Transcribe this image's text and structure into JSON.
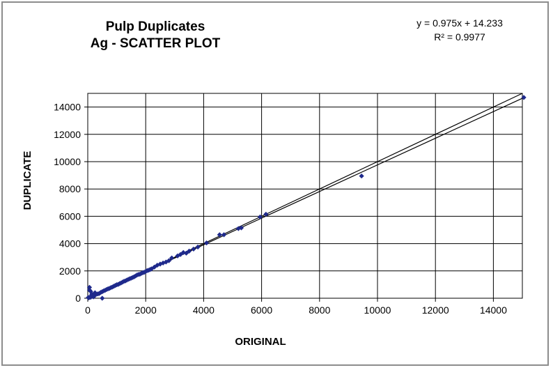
{
  "chart_data": {
    "type": "scatter",
    "title_lines": [
      "Pulp Duplicates",
      "Ag -  SCATTER PLOT"
    ],
    "xlabel": "ORIGINAL",
    "ylabel": "DUPLICATE",
    "xlim": [
      0,
      15000
    ],
    "ylim": [
      0,
      15000
    ],
    "xticks": [
      0,
      2000,
      4000,
      6000,
      8000,
      10000,
      12000,
      14000
    ],
    "yticks": [
      0,
      2000,
      4000,
      6000,
      8000,
      10000,
      12000,
      14000
    ],
    "grid": true,
    "marker_color": "#1f2a8c",
    "line_color": "#000000",
    "trendline": {
      "equation": "y = 0.975x + 14.233",
      "r_squared": "R² = 0.9977",
      "slope": 0.975,
      "intercept": 14.233
    },
    "reference_line": {
      "slope": 1,
      "intercept": 0
    },
    "series": [
      {
        "x": [
          20,
          40,
          60,
          80,
          100,
          120,
          150,
          180,
          200,
          250,
          300,
          350,
          400,
          450,
          500,
          550,
          600,
          650,
          700,
          750,
          800,
          850,
          900,
          950,
          1000,
          1050,
          1100,
          1150,
          1200,
          1250,
          1300,
          1350,
          1400,
          1450,
          1500,
          1550,
          1600,
          1650,
          1700,
          1750,
          1800,
          1850,
          1900,
          1950,
          2000,
          2050,
          2100,
          2150,
          2200,
          2300,
          2400,
          2500,
          2600,
          2700,
          2800,
          2900,
          3100,
          3200,
          3300,
          3400,
          3500,
          3650,
          3800,
          4100,
          4550,
          4700,
          5200,
          5300,
          5950,
          6150,
          9450,
          15050,
          60,
          100,
          200,
          500,
          140,
          250
        ],
        "y": [
          50,
          30,
          800,
          100,
          70,
          150,
          200,
          160,
          250,
          230,
          300,
          320,
          350,
          430,
          480,
          540,
          580,
          640,
          690,
          720,
          780,
          820,
          880,
          930,
          990,
          1010,
          1070,
          1120,
          1180,
          1240,
          1270,
          1330,
          1380,
          1430,
          1470,
          1520,
          1570,
          1630,
          1700,
          1740,
          1760,
          1820,
          1870,
          1900,
          1960,
          2020,
          2050,
          2100,
          2150,
          2280,
          2420,
          2500,
          2580,
          2650,
          2750,
          2950,
          3100,
          3200,
          3350,
          3300,
          3450,
          3600,
          3750,
          4050,
          4650,
          4650,
          5100,
          5150,
          5950,
          6150,
          8950,
          14700,
          600,
          500,
          100,
          0,
          300,
          400
        ]
      }
    ]
  }
}
